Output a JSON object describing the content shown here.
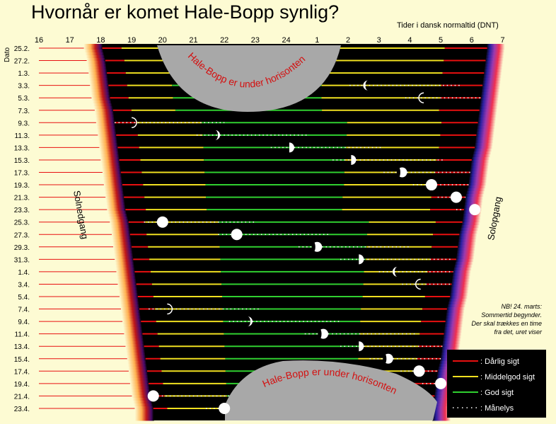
{
  "title": "Hvornår er komet Hale-Bopp synlig?",
  "time_caption": "Tider i dansk normaltid (DNT)",
  "sunset_label": "Solnedgang",
  "sunrise_label": "Solopgang",
  "horizon_top_label": "Hale-Bopp er under horisonten",
  "horizon_bottom_label": "Hale-Bopp er under horisonten",
  "note": [
    "NB! 24. marts:",
    "Sommertid begynder.",
    "Der skal trækkes en time",
    "fra det, uret viser"
  ],
  "legend": [
    {
      "label": ": Dårlig sigt",
      "color": "#e81010",
      "style": "solid"
    },
    {
      "label": ": Middelgod sigt",
      "color": "#f0e020",
      "style": "solid"
    },
    {
      "label": ": God sigt",
      "color": "#30d030",
      "style": "solid"
    },
    {
      "label": ": Månelys",
      "color": "#ffffff",
      "style": "dotted"
    }
  ],
  "colors": {
    "bad": "#e81010",
    "medium": "#f0e020",
    "good": "#30d030",
    "night": "#000000",
    "horizon_region": "#a8a8a8"
  },
  "chart_data": {
    "type": "timeline",
    "x_axis_title": "Tider i dansk normaltid (DNT)",
    "y_axis_title": "Dato",
    "hour_ticks": [
      "16",
      "17",
      "18",
      "19",
      "20",
      "21",
      "22",
      "23",
      "24",
      "1",
      "2",
      "3",
      "4",
      "5",
      "6",
      "7"
    ],
    "dates": [
      "25.2.",
      "27.2.",
      "1.3.",
      "3.3.",
      "5.3.",
      "7.3.",
      "9.3.",
      "11.3.",
      "13.3.",
      "15.3.",
      "17.3.",
      "19.3.",
      "21.3.",
      "23.3.",
      "25.3.",
      "27.3.",
      "29.3.",
      "31.3.",
      "1.4.",
      "3.4.",
      "5.4.",
      "7.4.",
      "9.4.",
      "11.4.",
      "13.4.",
      "15.4.",
      "17.4.",
      "19.4.",
      "21.4.",
      "23.4."
    ],
    "sunset_hours": [
      18.05,
      18.15,
      18.2,
      18.25,
      18.3,
      18.4,
      18.45,
      18.5,
      18.55,
      18.6,
      18.65,
      18.7,
      18.75,
      18.8,
      18.9,
      18.95,
      19.0,
      19.05,
      19.1,
      19.15,
      19.2,
      19.25,
      19.3,
      19.35,
      19.4,
      19.45,
      19.5,
      19.55,
      19.6,
      19.7
    ],
    "sunrise_hours": [
      30.5,
      30.45,
      30.4,
      30.35,
      30.3,
      30.25,
      30.2,
      30.15,
      30.1,
      30.0,
      29.95,
      29.9,
      29.8,
      29.75,
      29.7,
      29.6,
      29.55,
      29.5,
      29.4,
      29.35,
      29.3,
      29.2,
      29.15,
      29.1,
      29.05,
      29.0,
      28.9,
      28.85,
      28.8,
      28.75
    ],
    "moon": [
      null,
      null,
      null,
      {
        "hour": 26.65,
        "phase": "waning"
      },
      {
        "hour": 28.45,
        "phase": "thin-waning"
      },
      null,
      {
        "hour": 19.0,
        "phase": "thin-waxing"
      },
      {
        "hour": 21.7,
        "phase": "waxing"
      },
      {
        "hour": 24.1,
        "phase": "half"
      },
      {
        "hour": 26.1,
        "phase": "half"
      },
      {
        "hour": 27.75,
        "phase": "gibbous"
      },
      {
        "hour": 28.7,
        "phase": "full"
      },
      {
        "hour": 29.5,
        "phase": "full"
      },
      {
        "hour": 30.1,
        "phase": "full"
      },
      {
        "hour": 20.0,
        "phase": "full"
      },
      {
        "hour": 22.4,
        "phase": "full"
      },
      {
        "hour": 25.0,
        "phase": "gibbous"
      },
      {
        "hour": 26.35,
        "phase": "half"
      },
      {
        "hour": 27.6,
        "phase": "waning"
      },
      {
        "hour": 28.35,
        "phase": "thin-waning"
      },
      null,
      {
        "hour": 20.15,
        "phase": "thin-waxing"
      },
      {
        "hour": 22.75,
        "phase": "waxing"
      },
      {
        "hour": 25.2,
        "phase": "gibbous"
      },
      {
        "hour": 26.35,
        "phase": "half"
      },
      {
        "hour": 27.3,
        "phase": "gibbous"
      },
      {
        "hour": 28.3,
        "phase": "full"
      },
      {
        "hour": 29.0,
        "phase": "full"
      },
      {
        "hour": 19.7,
        "phase": "full"
      },
      {
        "hour": 22.0,
        "phase": "full"
      }
    ],
    "legend_entries": [
      "Dårlig sigt",
      "Middelgod sigt",
      "God sigt",
      "Månelys"
    ]
  }
}
